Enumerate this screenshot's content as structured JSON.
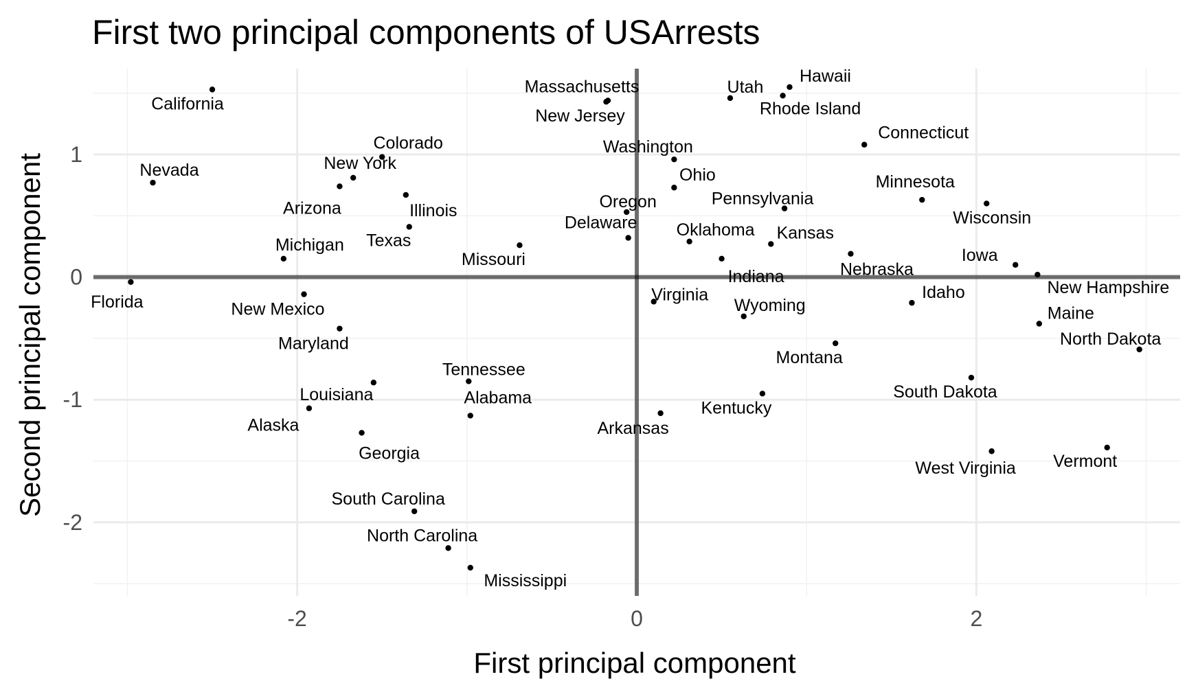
{
  "chart_data": {
    "type": "scatter",
    "title": "First two principal components of USArrests",
    "xlabel": "First principal component",
    "ylabel": "Second principal component",
    "xlim": [
      -3.2,
      3.2
    ],
    "ylim": [
      -2.6,
      1.7
    ],
    "x_ticks": [
      -2,
      0,
      2
    ],
    "y_ticks": [
      -2,
      -1,
      0,
      1
    ],
    "x_tick_labels": [
      "-2",
      "0",
      "2"
    ],
    "y_tick_labels": [
      "-2",
      "-1",
      "0",
      "1"
    ],
    "grid": true,
    "reference_lines": {
      "x": 0,
      "y": 0
    },
    "points": [
      {
        "label": "Alabama",
        "x": -0.98,
        "y": -1.13
      },
      {
        "label": "Alaska",
        "x": -1.93,
        "y": -1.07
      },
      {
        "label": "Arizona",
        "x": -1.75,
        "y": 0.74
      },
      {
        "label": "Arkansas",
        "x": 0.14,
        "y": -1.11
      },
      {
        "label": "California",
        "x": -2.5,
        "y": 1.53
      },
      {
        "label": "Colorado",
        "x": -1.5,
        "y": 0.98
      },
      {
        "label": "Connecticut",
        "x": 1.34,
        "y": 1.08
      },
      {
        "label": "Delaware",
        "x": -0.05,
        "y": 0.32
      },
      {
        "label": "Florida",
        "x": -2.98,
        "y": -0.04
      },
      {
        "label": "Georgia",
        "x": -1.62,
        "y": -1.27
      },
      {
        "label": "Hawaii",
        "x": 0.9,
        "y": 1.55
      },
      {
        "label": "Idaho",
        "x": 1.62,
        "y": -0.21
      },
      {
        "label": "Illinois",
        "x": -1.36,
        "y": 0.67
      },
      {
        "label": "Indiana",
        "x": 0.5,
        "y": 0.15
      },
      {
        "label": "Iowa",
        "x": 2.23,
        "y": 0.1
      },
      {
        "label": "Kansas",
        "x": 0.79,
        "y": 0.27
      },
      {
        "label": "Kentucky",
        "x": 0.74,
        "y": -0.95
      },
      {
        "label": "Louisiana",
        "x": -1.55,
        "y": -0.86
      },
      {
        "label": "Maine",
        "x": 2.37,
        "y": -0.38
      },
      {
        "label": "Maryland",
        "x": -1.75,
        "y": -0.42
      },
      {
        "label": "Massachusetts",
        "x": -0.17,
        "y": 1.44
      },
      {
        "label": "Michigan",
        "x": -2.08,
        "y": 0.15
      },
      {
        "label": "Minnesota",
        "x": 1.68,
        "y": 0.63
      },
      {
        "label": "Mississippi",
        "x": -0.98,
        "y": -2.37
      },
      {
        "label": "Missouri",
        "x": -0.69,
        "y": 0.26
      },
      {
        "label": "Montana",
        "x": 1.17,
        "y": -0.54
      },
      {
        "label": "Nebraska",
        "x": 1.26,
        "y": 0.19
      },
      {
        "label": "Nevada",
        "x": -2.85,
        "y": 0.77
      },
      {
        "label": "New Hampshire",
        "x": 2.36,
        "y": 0.02
      },
      {
        "label": "New Jersey",
        "x": -0.18,
        "y": 1.43
      },
      {
        "label": "New Mexico",
        "x": -1.96,
        "y": -0.14
      },
      {
        "label": "New York",
        "x": -1.67,
        "y": 0.81
      },
      {
        "label": "North Carolina",
        "x": -1.11,
        "y": -2.21
      },
      {
        "label": "North Dakota",
        "x": 2.96,
        "y": -0.59
      },
      {
        "label": "Ohio",
        "x": 0.22,
        "y": 0.73
      },
      {
        "label": "Oklahoma",
        "x": 0.31,
        "y": 0.29
      },
      {
        "label": "Oregon",
        "x": -0.06,
        "y": 0.53
      },
      {
        "label": "Pennsylvania",
        "x": 0.87,
        "y": 0.56
      },
      {
        "label": "Rhode Island",
        "x": 0.86,
        "y": 1.48
      },
      {
        "label": "South Carolina",
        "x": -1.31,
        "y": -1.91
      },
      {
        "label": "South Dakota",
        "x": 1.97,
        "y": -0.82
      },
      {
        "label": "Tennessee",
        "x": -0.99,
        "y": -0.85
      },
      {
        "label": "Texas",
        "x": -1.34,
        "y": 0.41
      },
      {
        "label": "Utah",
        "x": 0.55,
        "y": 1.46
      },
      {
        "label": "Vermont",
        "x": 2.77,
        "y": -1.39
      },
      {
        "label": "Virginia",
        "x": 0.1,
        "y": -0.2
      },
      {
        "label": "Washington",
        "x": 0.22,
        "y": 0.96
      },
      {
        "label": "West Virginia",
        "x": 2.09,
        "y": -1.42
      },
      {
        "label": "Wisconsin",
        "x": 2.06,
        "y": 0.6
      },
      {
        "label": "Wyoming",
        "x": 0.63,
        "y": -0.32
      }
    ]
  }
}
